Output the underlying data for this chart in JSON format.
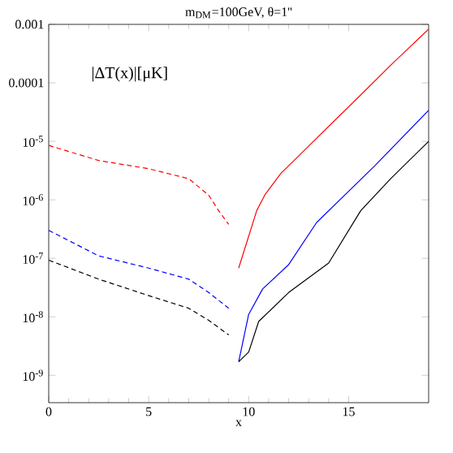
{
  "chart_data": {
    "type": "line",
    "title": "m$_{DM}$=100GeV, θ=1''",
    "xlabel": "x",
    "annotations": [
      "|ΔT(x)|[μK]"
    ],
    "log": "y",
    "grid": false,
    "marker": "none",
    "xlim": [
      0,
      19
    ],
    "xticks": [
      0,
      5,
      10,
      15
    ],
    "ylim": [
      3.4e-10,
      0.001
    ],
    "yticks": [
      0.001,
      0.0001,
      {
        "value": 1e-05,
        "label": "10$^{-5}$"
      },
      {
        "value": 1e-06,
        "label": "10$^{-6}$"
      },
      {
        "value": 1e-07,
        "label": "10$^{-7}$"
      },
      {
        "value": 1e-08,
        "label": "10$^{-8}$"
      },
      {
        "value": 1e-09,
        "label": "10$^{-9}$"
      }
    ],
    "series": [
      {
        "color": "#ff0000",
        "line_style": "dashed",
        "x": [
          0,
          2.5,
          5,
          7,
          8,
          8.5,
          9
        ],
        "values": [
          8.5e-06,
          4.7e-06,
          3.4e-06,
          2.3e-06,
          1.2e-06,
          6.5e-07,
          3.8e-07
        ]
      },
      {
        "color": "#0000ff",
        "line_style": "dashed",
        "x": [
          0,
          2.5,
          5,
          7,
          8,
          9
        ],
        "values": [
          3e-07,
          1.1e-07,
          6.8e-08,
          4.4e-08,
          2.6e-08,
          1.4e-08
        ]
      },
      {
        "color": "#000000",
        "line_style": "dashed",
        "x": [
          0,
          2.5,
          5,
          7,
          8,
          9
        ],
        "values": [
          9.3e-08,
          4.4e-08,
          2.3e-08,
          1.4e-08,
          8.7e-09,
          4.9e-09
        ]
      },
      {
        "color": "#ff0000",
        "line_style": "solid",
        "x": [
          9.5,
          10.4,
          10.8,
          11.6,
          13,
          14.9,
          17.1,
          19
        ],
        "values": [
          6.8e-08,
          6.5e-07,
          1.2e-06,
          2.8e-06,
          8.3e-06,
          3.6e-05,
          0.0002,
          0.00083
        ]
      },
      {
        "color": "#0000ff",
        "line_style": "solid",
        "x": [
          9.5,
          10,
          10.7,
          12,
          13.4,
          16.3,
          19
        ],
        "values": [
          1.7e-09,
          1.1e-08,
          3e-08,
          7.8e-08,
          4.1e-07,
          3.8e-06,
          3.4e-05
        ]
      },
      {
        "color": "#000000",
        "line_style": "solid",
        "x": [
          9.5,
          10,
          10.5,
          12,
          14,
          15.6,
          17.1,
          19
        ],
        "values": [
          1.7e-09,
          2.5e-09,
          8.3e-09,
          2.6e-08,
          8.3e-08,
          6.5e-07,
          2.3e-06,
          1e-05
        ]
      }
    ]
  }
}
